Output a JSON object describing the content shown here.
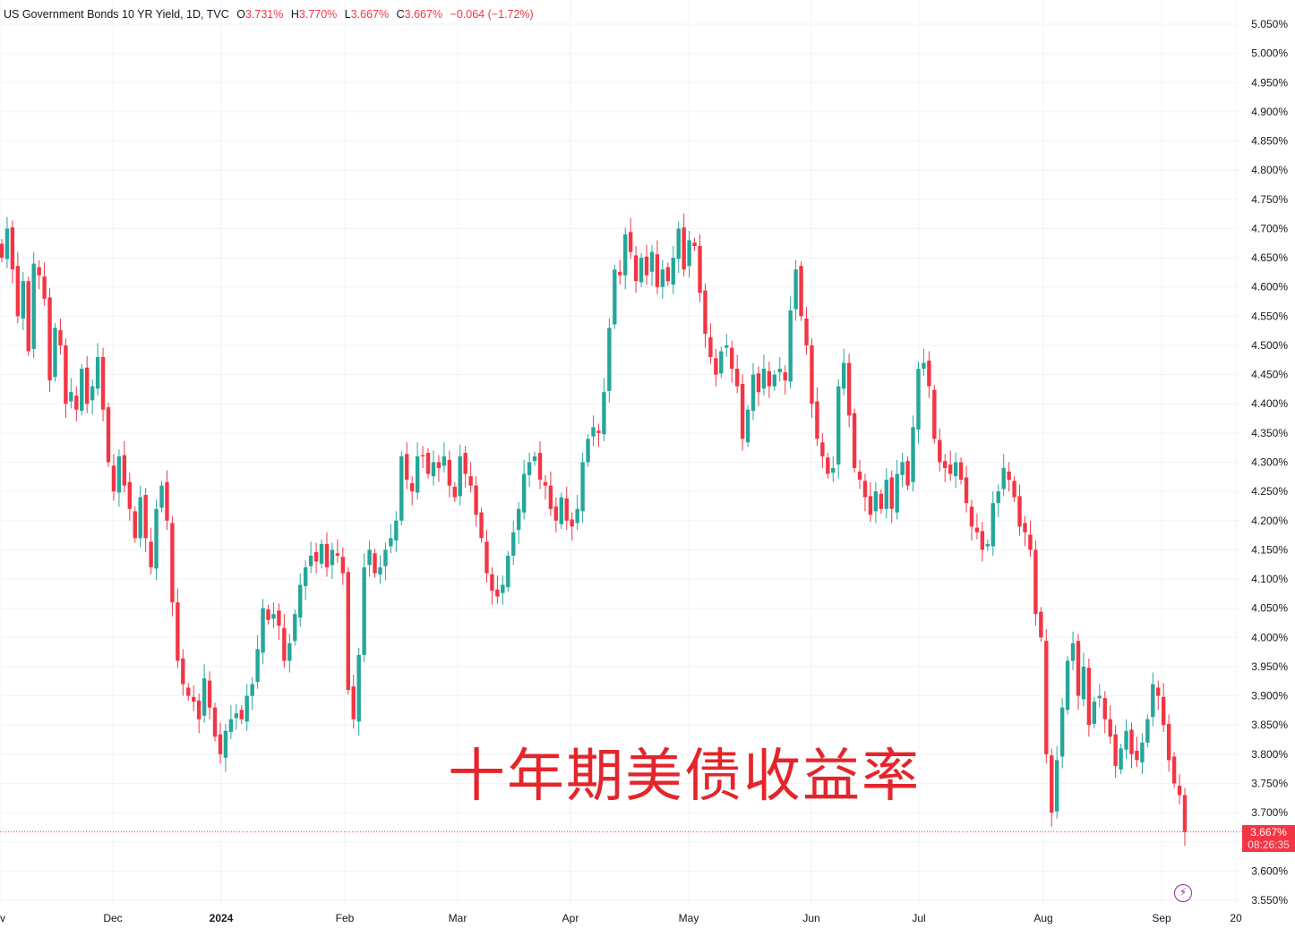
{
  "legend": {
    "symbol": "US Government Bonds 10 YR Yield, 1D, TVC",
    "open_label": "O",
    "open": "3.731%",
    "high_label": "H",
    "high": "3.770%",
    "low_label": "L",
    "low": "3.667%",
    "close_label": "C",
    "close": "3.667%",
    "change": "−0.064 (−1.72%)"
  },
  "overlay_text": "十年期美债收益率",
  "last_price": {
    "value": "3.667%",
    "countdown": "08:26:35"
  },
  "colors": {
    "up": "#26a69a",
    "down": "#f23645",
    "grid": "#f0f3fa",
    "axis_text": "#131722",
    "overlay": "#e4252b"
  },
  "icons": {
    "alert": "lightning-icon"
  },
  "chart_data": {
    "type": "candlestick",
    "title": "",
    "y_ticks": [
      "3.550%",
      "3.600%",
      "3.650%",
      "3.700%",
      "3.750%",
      "3.800%",
      "3.850%",
      "3.900%",
      "3.950%",
      "4.000%",
      "4.050%",
      "4.100%",
      "4.150%",
      "4.200%",
      "4.250%",
      "4.300%",
      "4.350%",
      "4.400%",
      "4.450%",
      "4.500%",
      "4.550%",
      "4.600%",
      "4.650%",
      "4.700%",
      "4.750%",
      "4.800%",
      "4.850%",
      "4.900%",
      "4.950%",
      "5.000%",
      "5.050%"
    ],
    "ylim": [
      3.55,
      5.05
    ],
    "x_ticks": [
      "v",
      "Dec",
      "2024",
      "Feb",
      "Mar",
      "Apr",
      "May",
      "Jun",
      "Jul",
      "Aug",
      "Sep",
      "20"
    ],
    "grid": true,
    "last_value": 3.667,
    "closes": [
      4.65,
      4.7,
      4.63,
      4.55,
      4.61,
      4.49,
      4.64,
      4.62,
      4.58,
      4.44,
      4.53,
      4.5,
      4.4,
      4.42,
      4.39,
      4.46,
      4.4,
      4.43,
      4.48,
      4.39,
      4.3,
      4.25,
      4.31,
      4.26,
      4.22,
      4.17,
      4.24,
      4.17,
      4.12,
      4.22,
      4.26,
      4.2,
      4.06,
      3.96,
      3.92,
      3.9,
      3.89,
      3.86,
      3.93,
      3.88,
      3.83,
      3.8,
      3.84,
      3.86,
      3.87,
      3.86,
      3.9,
      3.92,
      3.98,
      4.05,
      4.03,
      4.04,
      4.02,
      3.96,
      3.99,
      4.04,
      4.09,
      4.12,
      4.14,
      4.13,
      4.16,
      4.12,
      4.15,
      4.14,
      4.11,
      3.91,
      3.86,
      3.97,
      4.12,
      4.15,
      4.11,
      4.12,
      4.15,
      4.17,
      4.2,
      4.31,
      4.27,
      4.25,
      4.31,
      4.31,
      4.28,
      4.3,
      4.29,
      4.31,
      4.26,
      4.24,
      4.31,
      4.28,
      4.26,
      4.21,
      4.17,
      4.11,
      4.08,
      4.07,
      4.09,
      4.14,
      4.18,
      4.22,
      4.28,
      4.3,
      4.31,
      4.27,
      4.26,
      4.22,
      4.2,
      4.24,
      4.2,
      4.19,
      4.22,
      4.3,
      4.34,
      4.36,
      4.35,
      4.42,
      4.53,
      4.63,
      4.62,
      4.69,
      4.66,
      4.61,
      4.65,
      4.62,
      4.66,
      4.6,
      4.63,
      4.61,
      4.65,
      4.7,
      4.63,
      4.68,
      4.67,
      4.59,
      4.52,
      4.48,
      4.45,
      4.49,
      4.5,
      4.46,
      4.43,
      4.34,
      4.39,
      4.45,
      4.42,
      4.46,
      4.43,
      4.45,
      4.46,
      4.44,
      4.56,
      4.63,
      4.55,
      4.5,
      4.4,
      4.34,
      4.31,
      4.28,
      4.29,
      4.43,
      4.47,
      4.38,
      4.29,
      4.27,
      4.24,
      4.21,
      4.25,
      4.22,
      4.27,
      4.22,
      4.28,
      4.3,
      4.26,
      4.36,
      4.46,
      4.47,
      4.43,
      4.34,
      4.3,
      4.29,
      4.28,
      4.3,
      4.27,
      4.23,
      4.19,
      4.18,
      4.15,
      4.16,
      4.23,
      4.25,
      4.29,
      4.27,
      4.24,
      4.19,
      4.18,
      4.15,
      4.04,
      4.0,
      3.8,
      3.7,
      3.79,
      3.88,
      3.96,
      3.99,
      3.9,
      3.95,
      3.85,
      3.89,
      3.9,
      3.86,
      3.83,
      3.78,
      3.81,
      3.84,
      3.8,
      3.79,
      3.82,
      3.86,
      3.92,
      3.9,
      3.85,
      3.79,
      3.75,
      3.73,
      3.667
    ]
  }
}
